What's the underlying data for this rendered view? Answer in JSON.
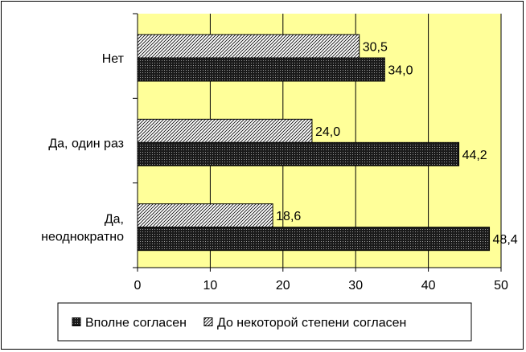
{
  "chart_data": {
    "type": "bar",
    "orientation": "horizontal",
    "categories": [
      "Нет",
      "Да, один раз",
      "Да, неоднократно"
    ],
    "category_lines": [
      [
        "Нет"
      ],
      [
        "Да, один раз"
      ],
      [
        "Да,",
        "неоднократно"
      ]
    ],
    "series": [
      {
        "name": "До некоторой степени согласен",
        "values": [
          30.5,
          24.0,
          18.6
        ],
        "value_labels": [
          "30,5",
          "24,0",
          "18,6"
        ],
        "pattern": "hatch-light",
        "color": "#ffffff"
      },
      {
        "name": "Вполне согласен",
        "values": [
          34.0,
          44.2,
          48.4
        ],
        "value_labels": [
          "34,0",
          "44,2",
          "48,4"
        ],
        "pattern": "hatch-dark",
        "color": "#333333"
      }
    ],
    "xlim": [
      0,
      50
    ],
    "x_ticks": [
      0,
      10,
      20,
      30,
      40,
      50
    ],
    "grid": true,
    "plot_background": "#ffff99",
    "legend": {
      "position": "bottom",
      "entries": [
        "Вполне согласен",
        "До некоторой степени согласен"
      ]
    }
  }
}
